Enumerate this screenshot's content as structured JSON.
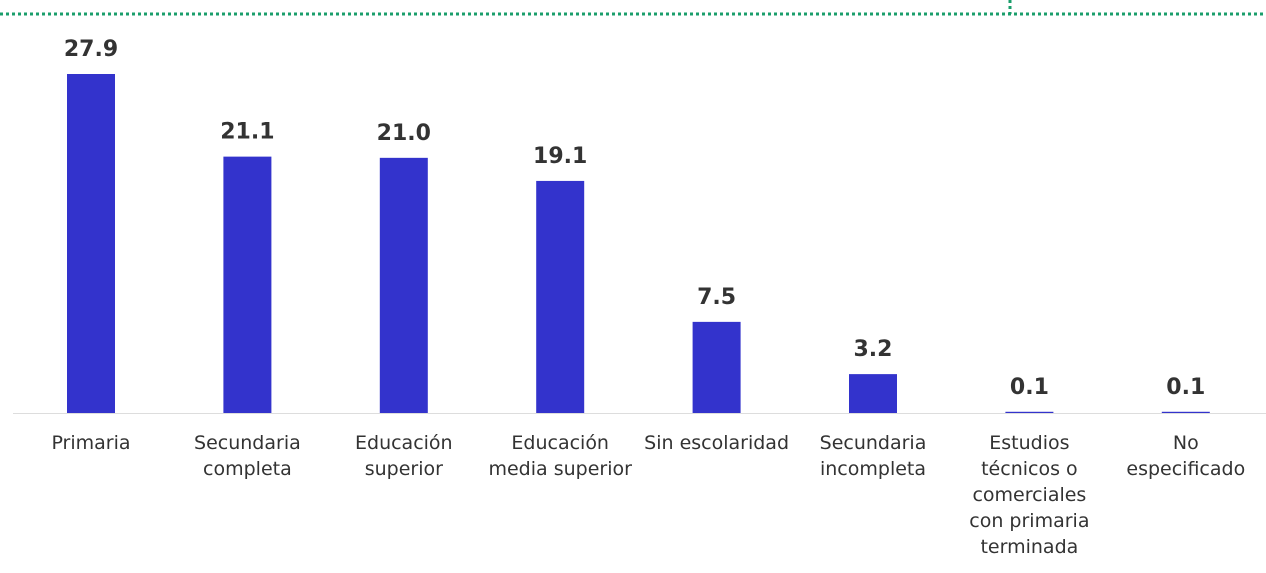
{
  "chart_data": {
    "type": "bar",
    "categories": [
      "Primaria",
      "Secundaria completa",
      "Educación superior",
      "Educación media superior",
      "Sin escolaridad",
      "Secundaria incompleta",
      "Estudios técnicos o comerciales con primaria terminada",
      "No especificado"
    ],
    "values": [
      27.9,
      21.1,
      21.0,
      19.1,
      7.5,
      3.2,
      0.1,
      0.1
    ],
    "value_labels": [
      "27.9",
      "21.1",
      "21.0",
      "19.1",
      "7.5",
      "3.2",
      "0.1",
      "0.1"
    ],
    "color": "#3333cc"
  }
}
